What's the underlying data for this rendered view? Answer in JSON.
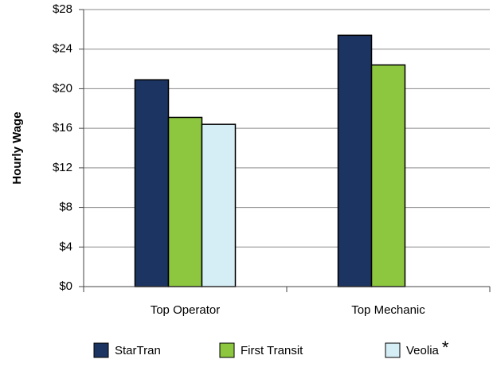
{
  "chart_data": {
    "type": "bar",
    "y_label": "Hourly Wage",
    "categories": [
      "Top Operator",
      "Top Mechanic"
    ],
    "series": [
      {
        "name": "StarTran",
        "color": "#1c3461",
        "values": [
          20.9,
          25.4
        ]
      },
      {
        "name": "First Transit",
        "color": "#8dc63f",
        "values": [
          17.1,
          22.4
        ]
      },
      {
        "name": "Veolia",
        "color": "#d5edf4",
        "values": [
          16.4,
          null
        ]
      }
    ],
    "legend_note": "*",
    "ylim": [
      0,
      28
    ],
    "yticks": [
      {
        "value": 0,
        "label": "$0"
      },
      {
        "value": 4,
        "label": "$4"
      },
      {
        "value": 8,
        "label": "$8"
      },
      {
        "value": 12,
        "label": "$12"
      },
      {
        "value": 16,
        "label": "$16"
      },
      {
        "value": 20,
        "label": "$20"
      },
      {
        "value": 24,
        "label": "$24"
      },
      {
        "value": 28,
        "label": "$28"
      }
    ],
    "grid": true,
    "legend": "bottom"
  }
}
